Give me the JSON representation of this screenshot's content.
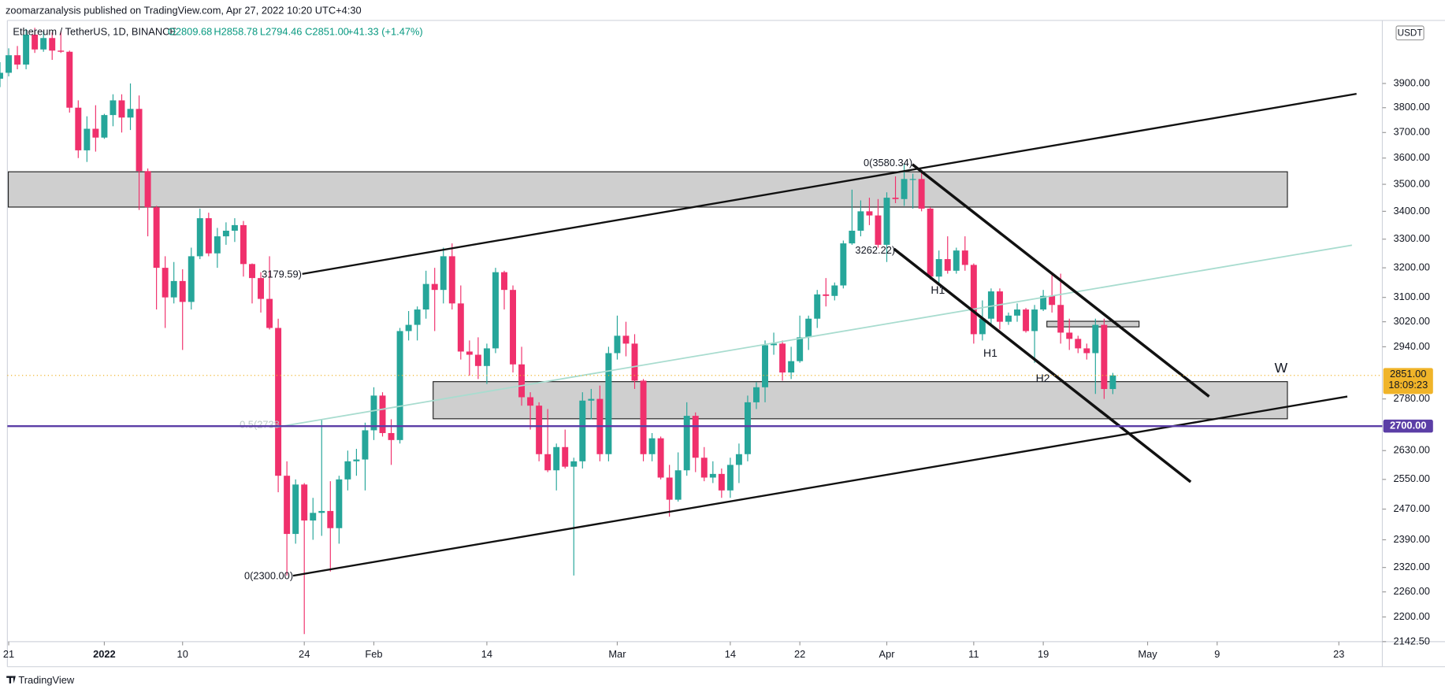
{
  "publisher": "zoomarzanalysis published on TradingView.com, Apr 27, 2022 10:20 UTC+4:30",
  "logo": "TradingView",
  "chart_data": {
    "type": "candlestick",
    "title": "Ethereum / TetherUS, 1D, BINANCE",
    "header": {
      "open": "O2809.68",
      "high": "H2858.78",
      "low": "L2794.46",
      "close": "C2851.00",
      "change": "+41.33 (+1.47%)"
    },
    "currency": "USDT",
    "up_color": "#26a69a",
    "down_color": "#f0306c",
    "log_scale": true,
    "grid": false,
    "xlim": [
      "2021-12-20",
      "2022-05-28"
    ],
    "ylim": [
      2142.5,
      4173
    ],
    "xticks": [
      {
        "value": "2021-12-21",
        "label": "21"
      },
      {
        "value": "2022-01-01",
        "label": "2022"
      },
      {
        "value": "2022-01-10",
        "label": "10"
      },
      {
        "value": "2022-01-24",
        "label": "24"
      },
      {
        "value": "2022-02-01",
        "label": "Feb"
      },
      {
        "value": "2022-02-14",
        "label": "14"
      },
      {
        "value": "2022-03-01",
        "label": "Mar"
      },
      {
        "value": "2022-03-14",
        "label": "14"
      },
      {
        "value": "2022-03-22",
        "label": "22"
      },
      {
        "value": "2022-04-01",
        "label": "Apr"
      },
      {
        "value": "2022-04-11",
        "label": "11"
      },
      {
        "value": "2022-04-19",
        "label": "19"
      },
      {
        "value": "2022-05-01",
        "label": "May"
      },
      {
        "value": "2022-05-09",
        "label": "9"
      },
      {
        "value": "2022-05-23",
        "label": "23"
      }
    ],
    "yticks": [
      {
        "value": 3900,
        "label": "3900.00"
      },
      {
        "value": 3800,
        "label": "3800.00"
      },
      {
        "value": 3700,
        "label": "3700.00"
      },
      {
        "value": 3600,
        "label": "3600.00"
      },
      {
        "value": 3500,
        "label": "3500.00"
      },
      {
        "value": 3400,
        "label": "3400.00"
      },
      {
        "value": 3300,
        "label": "3300.00"
      },
      {
        "value": 3200,
        "label": "3200.00"
      },
      {
        "value": 3100,
        "label": "3100.00"
      },
      {
        "value": 3020,
        "label": "3020.00"
      },
      {
        "value": 2940,
        "label": "2940.00"
      },
      {
        "value": 2780,
        "label": "2780.00"
      },
      {
        "value": 2630,
        "label": "2630.00"
      },
      {
        "value": 2550,
        "label": "2550.00"
      },
      {
        "value": 2470,
        "label": "2470.00"
      },
      {
        "value": 2390,
        "label": "2390.00"
      },
      {
        "value": 2320,
        "label": "2320.00"
      },
      {
        "value": 2260,
        "label": "2260.00"
      },
      {
        "value": 2200,
        "label": "2200.00"
      },
      {
        "value": 2142.5,
        "label": "2142.50"
      }
    ],
    "last_price": {
      "value": 2851,
      "label": "2851.00",
      "countdown": "18:09:23",
      "color": "#f0b429"
    },
    "horizontal_line": {
      "value": 2700,
      "label": "2700.00",
      "color": "#5b3ea6"
    },
    "annotations": [
      "0(3580.34)",
      "3262.22)",
      "3179.59)",
      "0(2300.00)",
      "0.5(2738",
      "H1",
      "H1",
      "H2",
      "W"
    ],
    "x": [
      "2021-12-20",
      "2021-12-21",
      "2021-12-22",
      "2021-12-23",
      "2021-12-24",
      "2021-12-25",
      "2021-12-26",
      "2021-12-27",
      "2021-12-28",
      "2021-12-29",
      "2021-12-30",
      "2021-12-31",
      "2022-01-01",
      "2022-01-02",
      "2022-01-03",
      "2022-01-04",
      "2022-01-05",
      "2022-01-06",
      "2022-01-07",
      "2022-01-08",
      "2022-01-09",
      "2022-01-10",
      "2022-01-11",
      "2022-01-12",
      "2022-01-13",
      "2022-01-14",
      "2022-01-15",
      "2022-01-16",
      "2022-01-17",
      "2022-01-18",
      "2022-01-19",
      "2022-01-20",
      "2022-01-21",
      "2022-01-22",
      "2022-01-23",
      "2022-01-24",
      "2022-01-25",
      "2022-01-26",
      "2022-01-27",
      "2022-01-28",
      "2022-01-29",
      "2022-01-30",
      "2022-01-31",
      "2022-02-01",
      "2022-02-02",
      "2022-02-03",
      "2022-02-04",
      "2022-02-05",
      "2022-02-06",
      "2022-02-07",
      "2022-02-08",
      "2022-02-09",
      "2022-02-10",
      "2022-02-11",
      "2022-02-12",
      "2022-02-13",
      "2022-02-14",
      "2022-02-15",
      "2022-02-16",
      "2022-02-17",
      "2022-02-18",
      "2022-02-19",
      "2022-02-20",
      "2022-02-21",
      "2022-02-22",
      "2022-02-23",
      "2022-02-24",
      "2022-02-25",
      "2022-02-26",
      "2022-02-27",
      "2022-02-28",
      "2022-03-01",
      "2022-03-02",
      "2022-03-03",
      "2022-03-04",
      "2022-03-05",
      "2022-03-06",
      "2022-03-07",
      "2022-03-08",
      "2022-03-09",
      "2022-03-10",
      "2022-03-11",
      "2022-03-12",
      "2022-03-13",
      "2022-03-14",
      "2022-03-15",
      "2022-03-16",
      "2022-03-17",
      "2022-03-18",
      "2022-03-19",
      "2022-03-20",
      "2022-03-21",
      "2022-03-22",
      "2022-03-23",
      "2022-03-24",
      "2022-03-25",
      "2022-03-26",
      "2022-03-27",
      "2022-03-28",
      "2022-03-29",
      "2022-03-30",
      "2022-03-31",
      "2022-04-01",
      "2022-04-02",
      "2022-04-03",
      "2022-04-04",
      "2022-04-05",
      "2022-04-06",
      "2022-04-07",
      "2022-04-08",
      "2022-04-09",
      "2022-04-10",
      "2022-04-11",
      "2022-04-12",
      "2022-04-13",
      "2022-04-14",
      "2022-04-15",
      "2022-04-16",
      "2022-04-17",
      "2022-04-18",
      "2022-04-19",
      "2022-04-20",
      "2022-04-21",
      "2022-04-22",
      "2022-04-23",
      "2022-04-24",
      "2022-04-25",
      "2022-04-26",
      "2022-04-27"
    ],
    "candles": [
      [
        3920,
        3990,
        3885,
        3945
      ],
      [
        3945,
        4050,
        3930,
        4020
      ],
      [
        4020,
        4060,
        3960,
        3980
      ],
      [
        3980,
        4135,
        3960,
        4110
      ],
      [
        4110,
        4140,
        4030,
        4045
      ],
      [
        4045,
        4125,
        4035,
        4095
      ],
      [
        4095,
        4120,
        4000,
        4040
      ],
      [
        4040,
        4125,
        4030,
        4035
      ],
      [
        4035,
        4040,
        3780,
        3800
      ],
      [
        3800,
        3830,
        3600,
        3630
      ],
      [
        3630,
        3765,
        3585,
        3715
      ],
      [
        3715,
        3810,
        3625,
        3680
      ],
      [
        3680,
        3775,
        3675,
        3770
      ],
      [
        3770,
        3855,
        3725,
        3830
      ],
      [
        3830,
        3855,
        3700,
        3760
      ],
      [
        3760,
        3900,
        3710,
        3795
      ],
      [
        3795,
        3850,
        3405,
        3550
      ],
      [
        3550,
        3560,
        3310,
        3415
      ],
      [
        3415,
        3420,
        3060,
        3200
      ],
      [
        3200,
        3240,
        3000,
        3100
      ],
      [
        3100,
        3220,
        3080,
        3155
      ],
      [
        3155,
        3195,
        2930,
        3085
      ],
      [
        3085,
        3270,
        3060,
        3240
      ],
      [
        3240,
        3410,
        3230,
        3375
      ],
      [
        3375,
        3395,
        3240,
        3250
      ],
      [
        3250,
        3340,
        3200,
        3310
      ],
      [
        3310,
        3360,
        3280,
        3330
      ],
      [
        3330,
        3375,
        3290,
        3350
      ],
      [
        3350,
        3365,
        3170,
        3213
      ],
      [
        3213,
        3215,
        3080,
        3165
      ],
      [
        3165,
        3185,
        3050,
        3095
      ],
      [
        3095,
        3240,
        2995,
        3000
      ],
      [
        3000,
        3030,
        2515,
        2560
      ],
      [
        2560,
        2600,
        2300,
        2405
      ],
      [
        2405,
        2550,
        2380,
        2536
      ],
      [
        2536,
        2540,
        2160,
        2440
      ],
      [
        2440,
        2500,
        2390,
        2460
      ],
      [
        2460,
        2720,
        2400,
        2465
      ],
      [
        2465,
        2545,
        2310,
        2420
      ],
      [
        2420,
        2560,
        2380,
        2550
      ],
      [
        2550,
        2630,
        2520,
        2600
      ],
      [
        2600,
        2635,
        2560,
        2605
      ],
      [
        2605,
        2710,
        2520,
        2688
      ],
      [
        2688,
        2815,
        2660,
        2790
      ],
      [
        2790,
        2800,
        2670,
        2680
      ],
      [
        2680,
        2720,
        2590,
        2660
      ],
      [
        2660,
        3000,
        2650,
        2990
      ],
      [
        2990,
        3055,
        2960,
        3010
      ],
      [
        3010,
        3070,
        2960,
        3060
      ],
      [
        3060,
        3190,
        3030,
        3145
      ],
      [
        3145,
        3200,
        2990,
        3125
      ],
      [
        3125,
        3270,
        3080,
        3240
      ],
      [
        3240,
        3285,
        3060,
        3080
      ],
      [
        3080,
        3140,
        2900,
        2925
      ],
      [
        2925,
        2960,
        2850,
        2915
      ],
      [
        2915,
        2970,
        2840,
        2880
      ],
      [
        2880,
        2950,
        2825,
        2935
      ],
      [
        2935,
        3200,
        2920,
        3185
      ],
      [
        3185,
        3190,
        3060,
        3125
      ],
      [
        3125,
        3140,
        2860,
        2885
      ],
      [
        2885,
        2940,
        2760,
        2785
      ],
      [
        2785,
        2800,
        2690,
        2760
      ],
      [
        2760,
        2770,
        2600,
        2620
      ],
      [
        2620,
        2750,
        2570,
        2575
      ],
      [
        2575,
        2650,
        2520,
        2640
      ],
      [
        2640,
        2690,
        2580,
        2585
      ],
      [
        2585,
        2610,
        2300,
        2600
      ],
      [
        2600,
        2800,
        2580,
        2775
      ],
      [
        2775,
        2810,
        2720,
        2780
      ],
      [
        2780,
        2820,
        2600,
        2620
      ],
      [
        2620,
        2940,
        2600,
        2920
      ],
      [
        2920,
        3040,
        2900,
        2975
      ],
      [
        2975,
        3020,
        2910,
        2950
      ],
      [
        2950,
        2980,
        2810,
        2835
      ],
      [
        2835,
        2840,
        2600,
        2620
      ],
      [
        2620,
        2680,
        2600,
        2665
      ],
      [
        2665,
        2670,
        2550,
        2555
      ],
      [
        2555,
        2590,
        2450,
        2495
      ],
      [
        2495,
        2625,
        2490,
        2575
      ],
      [
        2575,
        2770,
        2560,
        2730
      ],
      [
        2730,
        2740,
        2570,
        2610
      ],
      [
        2610,
        2640,
        2545,
        2555
      ],
      [
        2555,
        2600,
        2540,
        2565
      ],
      [
        2565,
        2580,
        2500,
        2520
      ],
      [
        2520,
        2610,
        2500,
        2590
      ],
      [
        2590,
        2650,
        2540,
        2620
      ],
      [
        2620,
        2790,
        2600,
        2770
      ],
      [
        2770,
        2830,
        2750,
        2815
      ],
      [
        2815,
        2960,
        2770,
        2945
      ],
      [
        2945,
        2985,
        2915,
        2950
      ],
      [
        2950,
        2960,
        2835,
        2860
      ],
      [
        2860,
        2940,
        2840,
        2895
      ],
      [
        2895,
        3040,
        2890,
        2970
      ],
      [
        2970,
        3040,
        2930,
        3030
      ],
      [
        3030,
        3125,
        3000,
        3110
      ],
      [
        3110,
        3165,
        3070,
        3105
      ],
      [
        3105,
        3150,
        3090,
        3140
      ],
      [
        3140,
        3295,
        3130,
        3285
      ],
      [
        3285,
        3480,
        3280,
        3330
      ],
      [
        3330,
        3440,
        3310,
        3400
      ],
      [
        3400,
        3450,
        3350,
        3385
      ],
      [
        3385,
        3445,
        3270,
        3280
      ],
      [
        3280,
        3470,
        3220,
        3450
      ],
      [
        3450,
        3530,
        3430,
        3445
      ],
      [
        3445,
        3580.34,
        3420,
        3520
      ],
      [
        3520,
        3540,
        3410,
        3520
      ],
      [
        3520,
        3550,
        3400,
        3410
      ],
      [
        3410,
        3415,
        3160,
        3170
      ],
      [
        3170,
        3260,
        3140,
        3230
      ],
      [
        3230,
        3310,
        3180,
        3190
      ],
      [
        3190,
        3270,
        3180,
        3260
      ],
      [
        3260,
        3310,
        3190,
        3210
      ],
      [
        3210,
        3215,
        2950,
        2980
      ],
      [
        2980,
        3090,
        2960,
        3030
      ],
      [
        3030,
        3130,
        3010,
        3120
      ],
      [
        3120,
        3130,
        2995,
        3020
      ],
      [
        3020,
        3050,
        3010,
        3040
      ],
      [
        3040,
        3080,
        3020,
        3060
      ],
      [
        3060,
        3065,
        2985,
        2990
      ],
      [
        2990,
        3075,
        2890,
        3060
      ],
      [
        3060,
        3125,
        3055,
        3105
      ],
      [
        3105,
        3175,
        3050,
        3075
      ],
      [
        3075,
        3180,
        2950,
        2985
      ],
      [
        2985,
        3030,
        2930,
        2965
      ],
      [
        2965,
        2975,
        2920,
        2935
      ],
      [
        2935,
        2950,
        2900,
        2920
      ],
      [
        2920,
        3030,
        2795,
        3010
      ],
      [
        3010,
        3030,
        2780,
        2809.68
      ],
      [
        2809.68,
        2858.78,
        2794.46,
        2851
      ]
    ]
  }
}
